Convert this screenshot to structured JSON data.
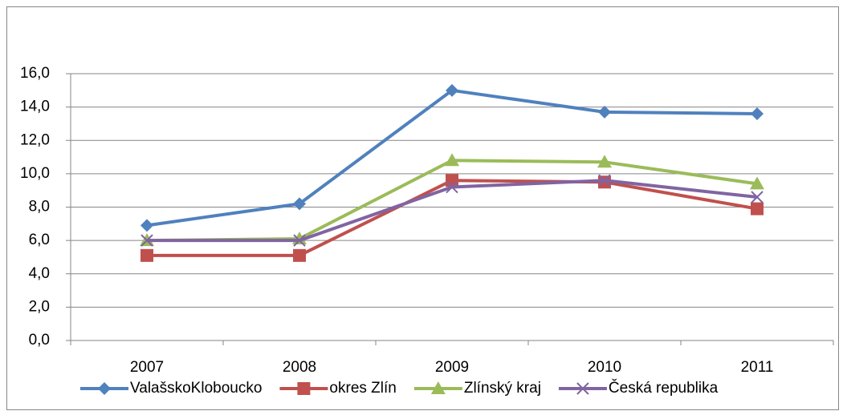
{
  "chart_data": {
    "type": "line",
    "categories": [
      "2007",
      "2008",
      "2009",
      "2010",
      "2011"
    ],
    "series": [
      {
        "name": "ValašskoKloboucko",
        "color": "#4f81bd",
        "marker": "diamond",
        "values": [
          6.9,
          8.2,
          15.0,
          13.7,
          13.6
        ]
      },
      {
        "name": "okres Zlín",
        "color": "#c0504d",
        "marker": "square",
        "values": [
          5.1,
          5.1,
          9.6,
          9.5,
          7.9
        ]
      },
      {
        "name": "Zlínský kraj",
        "color": "#9bbb59",
        "marker": "triangle",
        "values": [
          6.0,
          6.1,
          10.8,
          10.7,
          9.4
        ]
      },
      {
        "name": "Česká republika",
        "color": "#8064a2",
        "marker": "x",
        "values": [
          6.0,
          6.0,
          9.2,
          9.6,
          8.6
        ]
      }
    ],
    "ylim": [
      0,
      16
    ],
    "yticks": [
      {
        "value": 0,
        "label": "0,0"
      },
      {
        "value": 2,
        "label": "2,0"
      },
      {
        "value": 4,
        "label": "4,0"
      },
      {
        "value": 6,
        "label": "6,0"
      },
      {
        "value": 8,
        "label": "8,0"
      },
      {
        "value": 10,
        "label": "10,0"
      },
      {
        "value": 12,
        "label": "12,0"
      },
      {
        "value": 14,
        "label": "14,0"
      },
      {
        "value": 16,
        "label": "16,0"
      }
    ],
    "grid": true,
    "legend": "bottom"
  }
}
